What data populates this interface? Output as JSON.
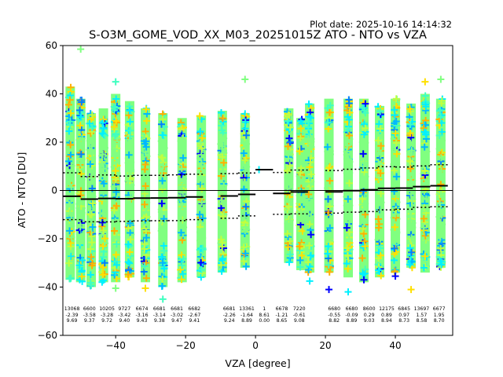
{
  "chart_data": {
    "type": "scatter",
    "plot_date": "Plot date: 2025-10-16 14:14:32",
    "title": "S-O3M_GOME_VOD_XX_M03_20251015Z ATO - NTO vs VZA",
    "xlabel": "VZA [degree]",
    "ylabel": "ATO - NTO [DU]",
    "xlim": [
      -55.1,
      56.4
    ],
    "ylim": [
      -60,
      60
    ],
    "xticks": [
      -40,
      -20,
      0,
      20,
      40
    ],
    "xtick_labels": [
      "−40",
      "−20",
      "0",
      "20",
      "40"
    ],
    "yticks": [
      -60,
      -40,
      -20,
      0,
      20,
      40,
      60
    ],
    "ytick_labels": [
      "−60",
      "−40",
      "−20",
      "0",
      "20",
      "40",
      "60"
    ],
    "grid": false,
    "legend": "none",
    "zero_line": 0,
    "marker": "+",
    "colormap_colors": [
      "#0000ff",
      "#0080ff",
      "#00b8ff",
      "#00f0ff",
      "#40ffc0",
      "#80ff80",
      "#c0ff40",
      "#ffe000",
      "#ffb000"
    ],
    "columns": [
      {
        "vza": -53.0,
        "top": 43,
        "bottom": -37
      },
      {
        "vza": -50.0,
        "top": 38,
        "bottom": -38
      },
      {
        "vza": -47.0,
        "top": 32,
        "bottom": -40
      },
      {
        "vza": -43.5,
        "top": 34,
        "bottom": -38
      },
      {
        "vza": -40.0,
        "top": 40,
        "bottom": -38
      },
      {
        "vza": -36.0,
        "top": 37,
        "bottom": -36
      },
      {
        "vza": -31.5,
        "top": 34,
        "bottom": -38
      },
      {
        "vza": -26.5,
        "top": 32,
        "bottom": -40
      },
      {
        "vza": -21.0,
        "top": 30,
        "bottom": -38
      },
      {
        "vza": -15.5,
        "top": 31,
        "bottom": -36
      },
      {
        "vza": -9.5,
        "top": 33,
        "bottom": -34
      },
      {
        "vza": -3.0,
        "top": 32,
        "bottom": -32
      },
      {
        "vza": 9.5,
        "top": 34,
        "bottom": -30
      },
      {
        "vza": 13.0,
        "top": 30,
        "bottom": -33
      },
      {
        "vza": 15.5,
        "top": 36,
        "bottom": -34
      },
      {
        "vza": 21.0,
        "top": 38,
        "bottom": -34
      },
      {
        "vza": 26.5,
        "top": 38,
        "bottom": -36
      },
      {
        "vza": 31.0,
        "top": 38,
        "bottom": -38
      },
      {
        "vza": 35.5,
        "top": 35,
        "bottom": -36
      },
      {
        "vza": 40.0,
        "top": 38,
        "bottom": -34
      },
      {
        "vza": 44.5,
        "top": 36,
        "bottom": -32
      },
      {
        "vza": 48.5,
        "top": 40,
        "bottom": -34
      },
      {
        "vza": 53.0,
        "top": 38,
        "bottom": -32
      }
    ],
    "outliers": [
      {
        "vza": -50.0,
        "y": 58.5,
        "c": 5
      },
      {
        "vza": -40.0,
        "y": 45,
        "c": 4
      },
      {
        "vza": -3.0,
        "y": 46,
        "c": 5
      },
      {
        "vza": 1.0,
        "y": 8.6,
        "c": 3
      },
      {
        "vza": 48.5,
        "y": 45,
        "c": 7
      },
      {
        "vza": 53.0,
        "y": 46,
        "c": 5
      },
      {
        "vza": 26.5,
        "y": -42,
        "c": 3
      },
      {
        "vza": 31.0,
        "y": -37,
        "c": 0
      },
      {
        "vza": 40.0,
        "y": -35.5,
        "c": 0
      },
      {
        "vza": 44.5,
        "y": -41,
        "c": 7
      },
      {
        "vza": -26.5,
        "y": -45,
        "c": 4
      },
      {
        "vza": -40.0,
        "y": -40.5,
        "c": 5
      },
      {
        "vza": -31.5,
        "y": -40.5,
        "c": 7
      },
      {
        "vza": 21.0,
        "y": -41,
        "c": 0
      },
      {
        "vza": 15.5,
        "y": -37.5,
        "c": 3
      }
    ],
    "bins": [
      {
        "center": -52.5,
        "n": 13068,
        "mean": -2.39,
        "std": 9.69
      },
      {
        "center": -47.5,
        "n": 6600,
        "mean": -3.58,
        "std": 9.37
      },
      {
        "center": -42.5,
        "n": 10205,
        "mean": -3.28,
        "std": 9.72
      },
      {
        "center": -37.5,
        "n": 9727,
        "mean": -3.42,
        "std": 9.4
      },
      {
        "center": -32.5,
        "n": 6674,
        "mean": -3.16,
        "std": 9.43
      },
      {
        "center": -27.5,
        "n": 6681,
        "mean": -3.14,
        "std": 9.38
      },
      {
        "center": -22.5,
        "n": 6681,
        "mean": -3.02,
        "std": 9.47
      },
      {
        "center": -17.5,
        "n": 6682,
        "mean": -2.67,
        "std": 9.41
      },
      {
        "center": -7.5,
        "n": 6681,
        "mean": -2.26,
        "std": 9.24
      },
      {
        "center": -2.5,
        "n": 13361,
        "mean": -1.64,
        "std": 8.89
      },
      {
        "center": 2.5,
        "n": 1,
        "mean": 8.61,
        "std": 0.0
      },
      {
        "center": 7.5,
        "n": 6678,
        "mean": -1.21,
        "std": 8.65
      },
      {
        "center": 12.5,
        "n": 7220,
        "mean": -0.61,
        "std": 9.08
      },
      {
        "center": 22.5,
        "n": 6680,
        "mean": -0.55,
        "std": 8.82
      },
      {
        "center": 27.5,
        "n": 6680,
        "mean": -0.09,
        "std": 8.89
      },
      {
        "center": 32.5,
        "n": 8600,
        "mean": 0.29,
        "std": 9.03
      },
      {
        "center": 37.5,
        "n": 12175,
        "mean": 0.89,
        "std": 8.94
      },
      {
        "center": 42.5,
        "n": 6845,
        "mean": 0.97,
        "std": 8.73
      },
      {
        "center": 47.5,
        "n": 13697,
        "mean": 1.57,
        "std": 8.58
      },
      {
        "center": 52.5,
        "n": 6677,
        "mean": 1.95,
        "std": 8.7
      }
    ],
    "bin_width": 5
  }
}
